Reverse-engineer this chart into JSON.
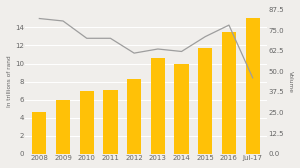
{
  "years": [
    "2008",
    "2009",
    "2010",
    "2011",
    "2012",
    "2013",
    "2014",
    "2015",
    "2016",
    "Jul-17"
  ],
  "bar_values": [
    4.6,
    6.0,
    7.0,
    7.1,
    8.3,
    10.6,
    10.0,
    11.7,
    13.5,
    15.0
  ],
  "line_values": [
    82.0,
    80.5,
    70.0,
    70.0,
    61.0,
    63.5,
    62.0,
    71.0,
    78.0,
    46.0
  ],
  "bar_color": "#FFC107",
  "line_color": "#9E9E9E",
  "left_ylabel": "In trillions of rand",
  "right_ylabel": "Volume",
  "left_ylim": [
    0,
    16
  ],
  "right_ylim": [
    0,
    87.5
  ],
  "left_yticks": [
    0,
    2,
    4,
    6,
    8,
    10,
    12,
    14
  ],
  "right_yticks": [
    0.0,
    12.5,
    25.0,
    37.5,
    50.0,
    62.5,
    75.0,
    87.5
  ],
  "background_color": "#F0EEEB",
  "tick_label_fontsize": 5.0,
  "axis_label_fontsize": 4.2,
  "line_width": 0.9,
  "bar_width": 0.6
}
